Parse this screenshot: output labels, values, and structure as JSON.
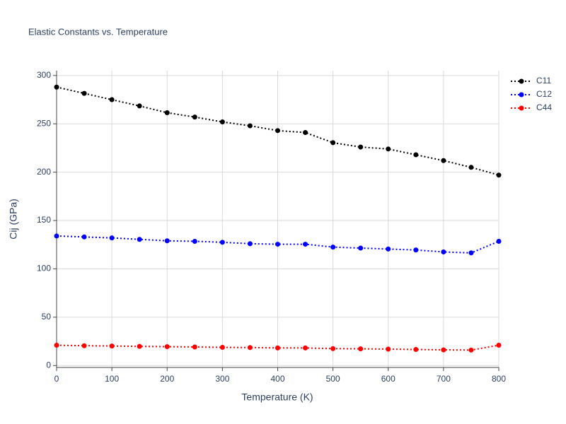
{
  "chart_data": {
    "type": "line",
    "title": "Elastic Constants vs. Temperature",
    "x_label": "Temperature (K)",
    "y_label": "Cij (GPa)",
    "x": [
      0,
      50,
      100,
      150,
      200,
      250,
      300,
      350,
      400,
      450,
      500,
      550,
      600,
      650,
      700,
      750,
      800
    ],
    "series": [
      {
        "name": "C11",
        "color": "#000000",
        "values": [
          288,
          281.5,
          275,
          268.5,
          261.5,
          257,
          252,
          248,
          243,
          241,
          230.5,
          226,
          224,
          218,
          212,
          205,
          197
        ]
      },
      {
        "name": "C12",
        "color": "#0000ff",
        "values": [
          134,
          133,
          132,
          130.5,
          129,
          128.5,
          127.5,
          126,
          125.5,
          125.5,
          122.5,
          121.5,
          120.5,
          119.5,
          117.5,
          116.5,
          128.5
        ]
      },
      {
        "name": "C44",
        "color": "#ff0000",
        "values": [
          21,
          20.5,
          20.2,
          19.8,
          19.5,
          19.2,
          18.8,
          18.6,
          18.2,
          18.2,
          17.5,
          17.3,
          17,
          16.6,
          16.2,
          16,
          21
        ]
      }
    ],
    "xlim": [
      0,
      800
    ],
    "xticks": [
      0,
      100,
      200,
      300,
      400,
      500,
      600,
      700,
      800
    ],
    "ylim": [
      -2,
      305
    ],
    "yticks": [
      0,
      50,
      100,
      150,
      200,
      250,
      300
    ],
    "grid": true,
    "legend": "top-right"
  }
}
